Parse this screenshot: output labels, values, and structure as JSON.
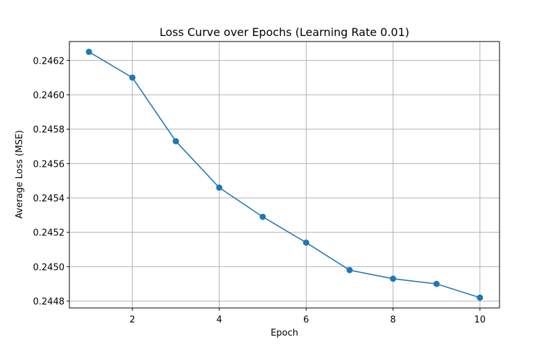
{
  "chart_data": {
    "type": "line",
    "title": "Loss Curve over Epochs (Learning Rate 0.01)",
    "xlabel": "Epoch",
    "ylabel": "Average Loss (MSE)",
    "x": [
      1,
      2,
      3,
      4,
      5,
      6,
      7,
      8,
      9,
      10
    ],
    "series": [
      {
        "values": [
          0.24625,
          0.2461,
          0.24573,
          0.24546,
          0.24529,
          0.24514,
          0.24498,
          0.24493,
          0.2449,
          0.24482
        ],
        "color": "#1f77b4",
        "marker": "circle"
      }
    ],
    "xlim": [
      0.55,
      10.45
    ],
    "ylim": [
      0.24476,
      0.24631
    ],
    "xticks": [
      2,
      4,
      6,
      8,
      10
    ],
    "xtick_labels": [
      "2",
      "4",
      "6",
      "8",
      "10"
    ],
    "yticks": [
      0.2448,
      0.245,
      0.2452,
      0.2454,
      0.2456,
      0.2458,
      0.246,
      0.2462
    ],
    "ytick_labels": [
      "0.2448",
      "0.2450",
      "0.2452",
      "0.2454",
      "0.2456",
      "0.2458",
      "0.2460",
      "0.2462"
    ],
    "grid": true,
    "legend": false
  }
}
